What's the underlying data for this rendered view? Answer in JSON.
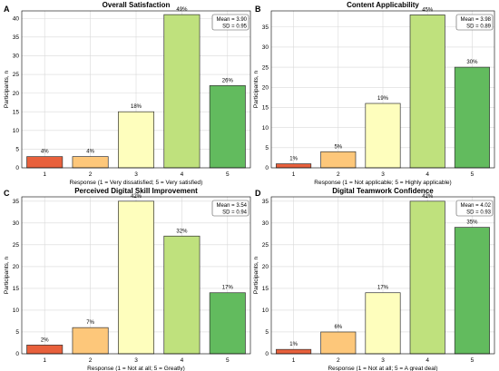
{
  "chart_data": [
    {
      "panel": "A",
      "type": "bar",
      "title": "Overall Satisfaction",
      "xlabel": "Response (1 = Very dissatisfied; 5 = Very satisfied)",
      "ylabel": "Participants, n",
      "categories": [
        "1",
        "2",
        "3",
        "4",
        "5"
      ],
      "values": [
        3,
        3,
        15,
        41,
        22
      ],
      "percent_labels": [
        "4%",
        "4%",
        "18%",
        "49%",
        "26%"
      ],
      "ylim": [
        0,
        42
      ],
      "yticks": [
        0,
        5,
        10,
        15,
        20,
        25,
        30,
        35,
        40
      ],
      "stats": {
        "mean": "Mean = 3.90",
        "sd": "SD = 0.95"
      },
      "grid": true
    },
    {
      "panel": "B",
      "type": "bar",
      "title": "Content Applicability",
      "xlabel": "Response (1 = Not applicable; 5 = Highly applicable)",
      "ylabel": "Participants, n",
      "categories": [
        "1",
        "2",
        "3",
        "4",
        "5"
      ],
      "values": [
        1,
        4,
        16,
        38,
        25
      ],
      "percent_labels": [
        "1%",
        "5%",
        "19%",
        "45%",
        "30%"
      ],
      "ylim": [
        0,
        39
      ],
      "yticks": [
        0,
        5,
        10,
        15,
        20,
        25,
        30,
        35
      ],
      "stats": {
        "mean": "Mean = 3.98",
        "sd": "SD = 0.89"
      },
      "grid": true
    },
    {
      "panel": "C",
      "type": "bar",
      "title": "Perceived Digital Skill Improvement",
      "xlabel": "Response (1 = Not at all; 5 = Greatly)",
      "ylabel": "Participants, n",
      "categories": [
        "1",
        "2",
        "3",
        "4",
        "5"
      ],
      "values": [
        2,
        6,
        35,
        27,
        14
      ],
      "percent_labels": [
        "2%",
        "7%",
        "42%",
        "32%",
        "17%"
      ],
      "ylim": [
        0,
        36
      ],
      "yticks": [
        0,
        5,
        10,
        15,
        20,
        25,
        30,
        35
      ],
      "stats": {
        "mean": "Mean = 3.54",
        "sd": "SD = 0.94"
      },
      "grid": true
    },
    {
      "panel": "D",
      "type": "bar",
      "title": "Digital Teamwork Confidence",
      "xlabel": "Response (1 = Not at all; 5 = A great deal)",
      "ylabel": "Participants, n",
      "categories": [
        "1",
        "2",
        "3",
        "4",
        "5"
      ],
      "values": [
        1,
        5,
        14,
        35,
        29
      ],
      "percent_labels": [
        "1%",
        "6%",
        "17%",
        "42%",
        "35%"
      ],
      "ylim": [
        0,
        36
      ],
      "yticks": [
        0,
        5,
        10,
        15,
        20,
        25,
        30,
        35
      ],
      "stats": {
        "mean": "Mean = 4.02",
        "sd": "SD = 0.93"
      },
      "grid": true
    }
  ],
  "colors": [
    "#e8603c",
    "#fdc77a",
    "#fefebd",
    "#bfe17d",
    "#62bb5e"
  ]
}
